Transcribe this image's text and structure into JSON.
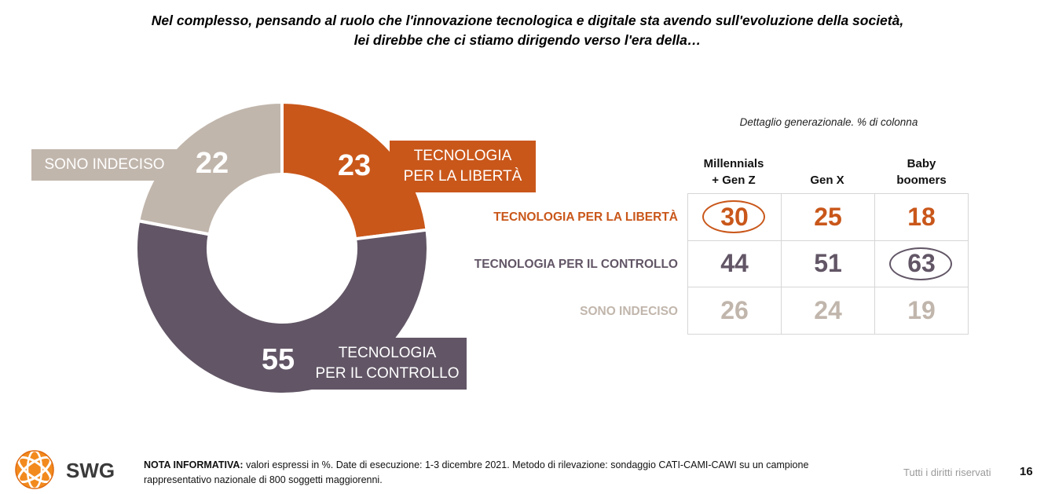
{
  "title": {
    "line1": "Nel complesso, pensando al ruolo che l'innovazione tecnologica e digitale sta avendo sull'evoluzione della società,",
    "line2": "lei direbbe che ci stiamo dirigendo verso l'era della…"
  },
  "chart_data": [
    {
      "type": "pie",
      "categories": [
        "TECNOLOGIA PER LA LIBERTÀ",
        "TECNOLOGIA PER IL CONTROLLO",
        "SONO INDECISO"
      ],
      "values": [
        23,
        55,
        22
      ],
      "labels": {
        "liberta": [
          "TECNOLOGIA",
          "PER LA LIBERTÀ"
        ],
        "controllo": [
          "TECNOLOGIA",
          "PER IL CONTROLLO"
        ],
        "indeciso": [
          "SONO INDECISO"
        ]
      },
      "colors": [
        "#c9571a",
        "#625666",
        "#c1b6ac"
      ]
    },
    {
      "type": "table",
      "title": "Dettaglio generazionale. % di colonna",
      "columns": [
        [
          "Millennials",
          "+ Gen Z"
        ],
        [
          "",
          "Gen X"
        ],
        [
          "Baby",
          "boomers"
        ]
      ],
      "rows": [
        {
          "label": "TECNOLOGIA PER LA LIBERTÀ",
          "values": [
            30,
            25,
            18
          ],
          "color": "#c9571a",
          "highlight": 0
        },
        {
          "label": "TECNOLOGIA PER IL CONTROLLO",
          "values": [
            44,
            51,
            63
          ],
          "color": "#625666",
          "highlight": 2
        },
        {
          "label": "SONO INDECISO",
          "values": [
            26,
            24,
            19
          ],
          "color": "#c1b6ac",
          "highlight": -1
        }
      ]
    }
  ],
  "footer": {
    "note_bold": "NOTA INFORMATIVA:",
    "note_text": " valori espressi in %. Date di esecuzione: 1-3 dicembre 2021. Metodo di rilevazione: sondaggio CATI-CAMI-CAWI su un campione rappresentativo nazionale di 800 soggetti maggiorenni.",
    "rights": "Tutti i diritti riservati",
    "page": "16",
    "logo_text": "SWG"
  }
}
